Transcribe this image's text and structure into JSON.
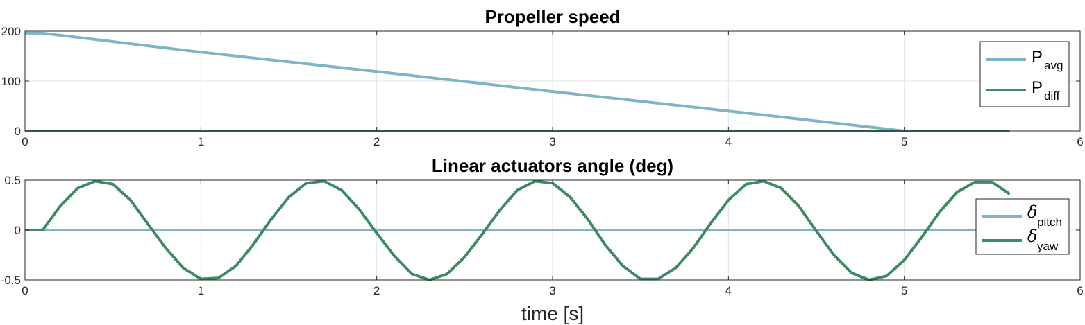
{
  "chart_data": [
    {
      "type": "line",
      "title": "Propeller speed",
      "xlabel": "",
      "ylabel": "",
      "xlim": [
        0,
        6
      ],
      "ylim": [
        0,
        200
      ],
      "xticks": [
        "0",
        "1",
        "2",
        "3",
        "4",
        "5",
        "6"
      ],
      "yticks": [
        "0",
        "100",
        "200"
      ],
      "grid": true,
      "legend_position": "right",
      "series": [
        {
          "name": "P",
          "subscript": "avg",
          "color": "#7fb3c8",
          "x": [
            0,
            0.1,
            1,
            2,
            3,
            4,
            5,
            5.6
          ],
          "y": [
            196,
            196,
            158,
            119,
            79,
            40,
            0,
            0
          ]
        },
        {
          "name": "P",
          "subscript": "diff",
          "color": "#3d8a63",
          "x": [
            0,
            5.6
          ],
          "y": [
            0,
            0
          ]
        }
      ]
    },
    {
      "type": "line",
      "title": "Linear actuators angle (deg)",
      "xlabel": "time [s]",
      "ylabel": "",
      "xlim": [
        0,
        6
      ],
      "ylim": [
        -0.5,
        0.5
      ],
      "xticks": [
        "0",
        "1",
        "2",
        "3",
        "4",
        "5",
        "6"
      ],
      "yticks": [
        "-0.5",
        "0",
        "0.5"
      ],
      "grid": true,
      "legend_position": "right",
      "series": [
        {
          "name": "δ",
          "subscript": "pitch",
          "color": "#7fb3c8",
          "x": [
            0,
            5.6
          ],
          "y": [
            0,
            0
          ]
        },
        {
          "name": "δ",
          "subscript": "yaw",
          "color": "#3d8a63",
          "x": [
            0,
            0.1,
            0.2,
            0.3,
            0.4,
            0.5,
            0.6,
            0.7,
            0.8,
            0.9,
            1.0,
            1.1,
            1.2,
            1.3,
            1.4,
            1.5,
            1.6,
            1.7,
            1.8,
            1.9,
            2.0,
            2.1,
            2.2,
            2.3,
            2.4,
            2.5,
            2.6,
            2.7,
            2.8,
            2.9,
            3.0,
            3.1,
            3.2,
            3.3,
            3.4,
            3.5,
            3.6,
            3.7,
            3.8,
            3.9,
            4.0,
            4.1,
            4.2,
            4.3,
            4.4,
            4.5,
            4.6,
            4.7,
            4.8,
            4.9,
            5.0,
            5.1,
            5.2,
            5.3,
            5.4,
            5.5,
            5.6
          ],
          "y": [
            0,
            0,
            0.24,
            0.42,
            0.49,
            0.46,
            0.3,
            0.06,
            -0.18,
            -0.38,
            -0.49,
            -0.48,
            -0.36,
            -0.14,
            0.11,
            0.33,
            0.47,
            0.49,
            0.4,
            0.21,
            -0.03,
            -0.26,
            -0.44,
            -0.5,
            -0.44,
            -0.27,
            -0.04,
            0.2,
            0.4,
            0.49,
            0.47,
            0.33,
            0.11,
            -0.15,
            -0.36,
            -0.49,
            -0.49,
            -0.38,
            -0.18,
            0.07,
            0.3,
            0.46,
            0.49,
            0.42,
            0.24,
            -0.01,
            -0.25,
            -0.43,
            -0.5,
            -0.46,
            -0.3,
            -0.07,
            0.18,
            0.38,
            0.48,
            0.48,
            0.36
          ]
        }
      ]
    }
  ]
}
